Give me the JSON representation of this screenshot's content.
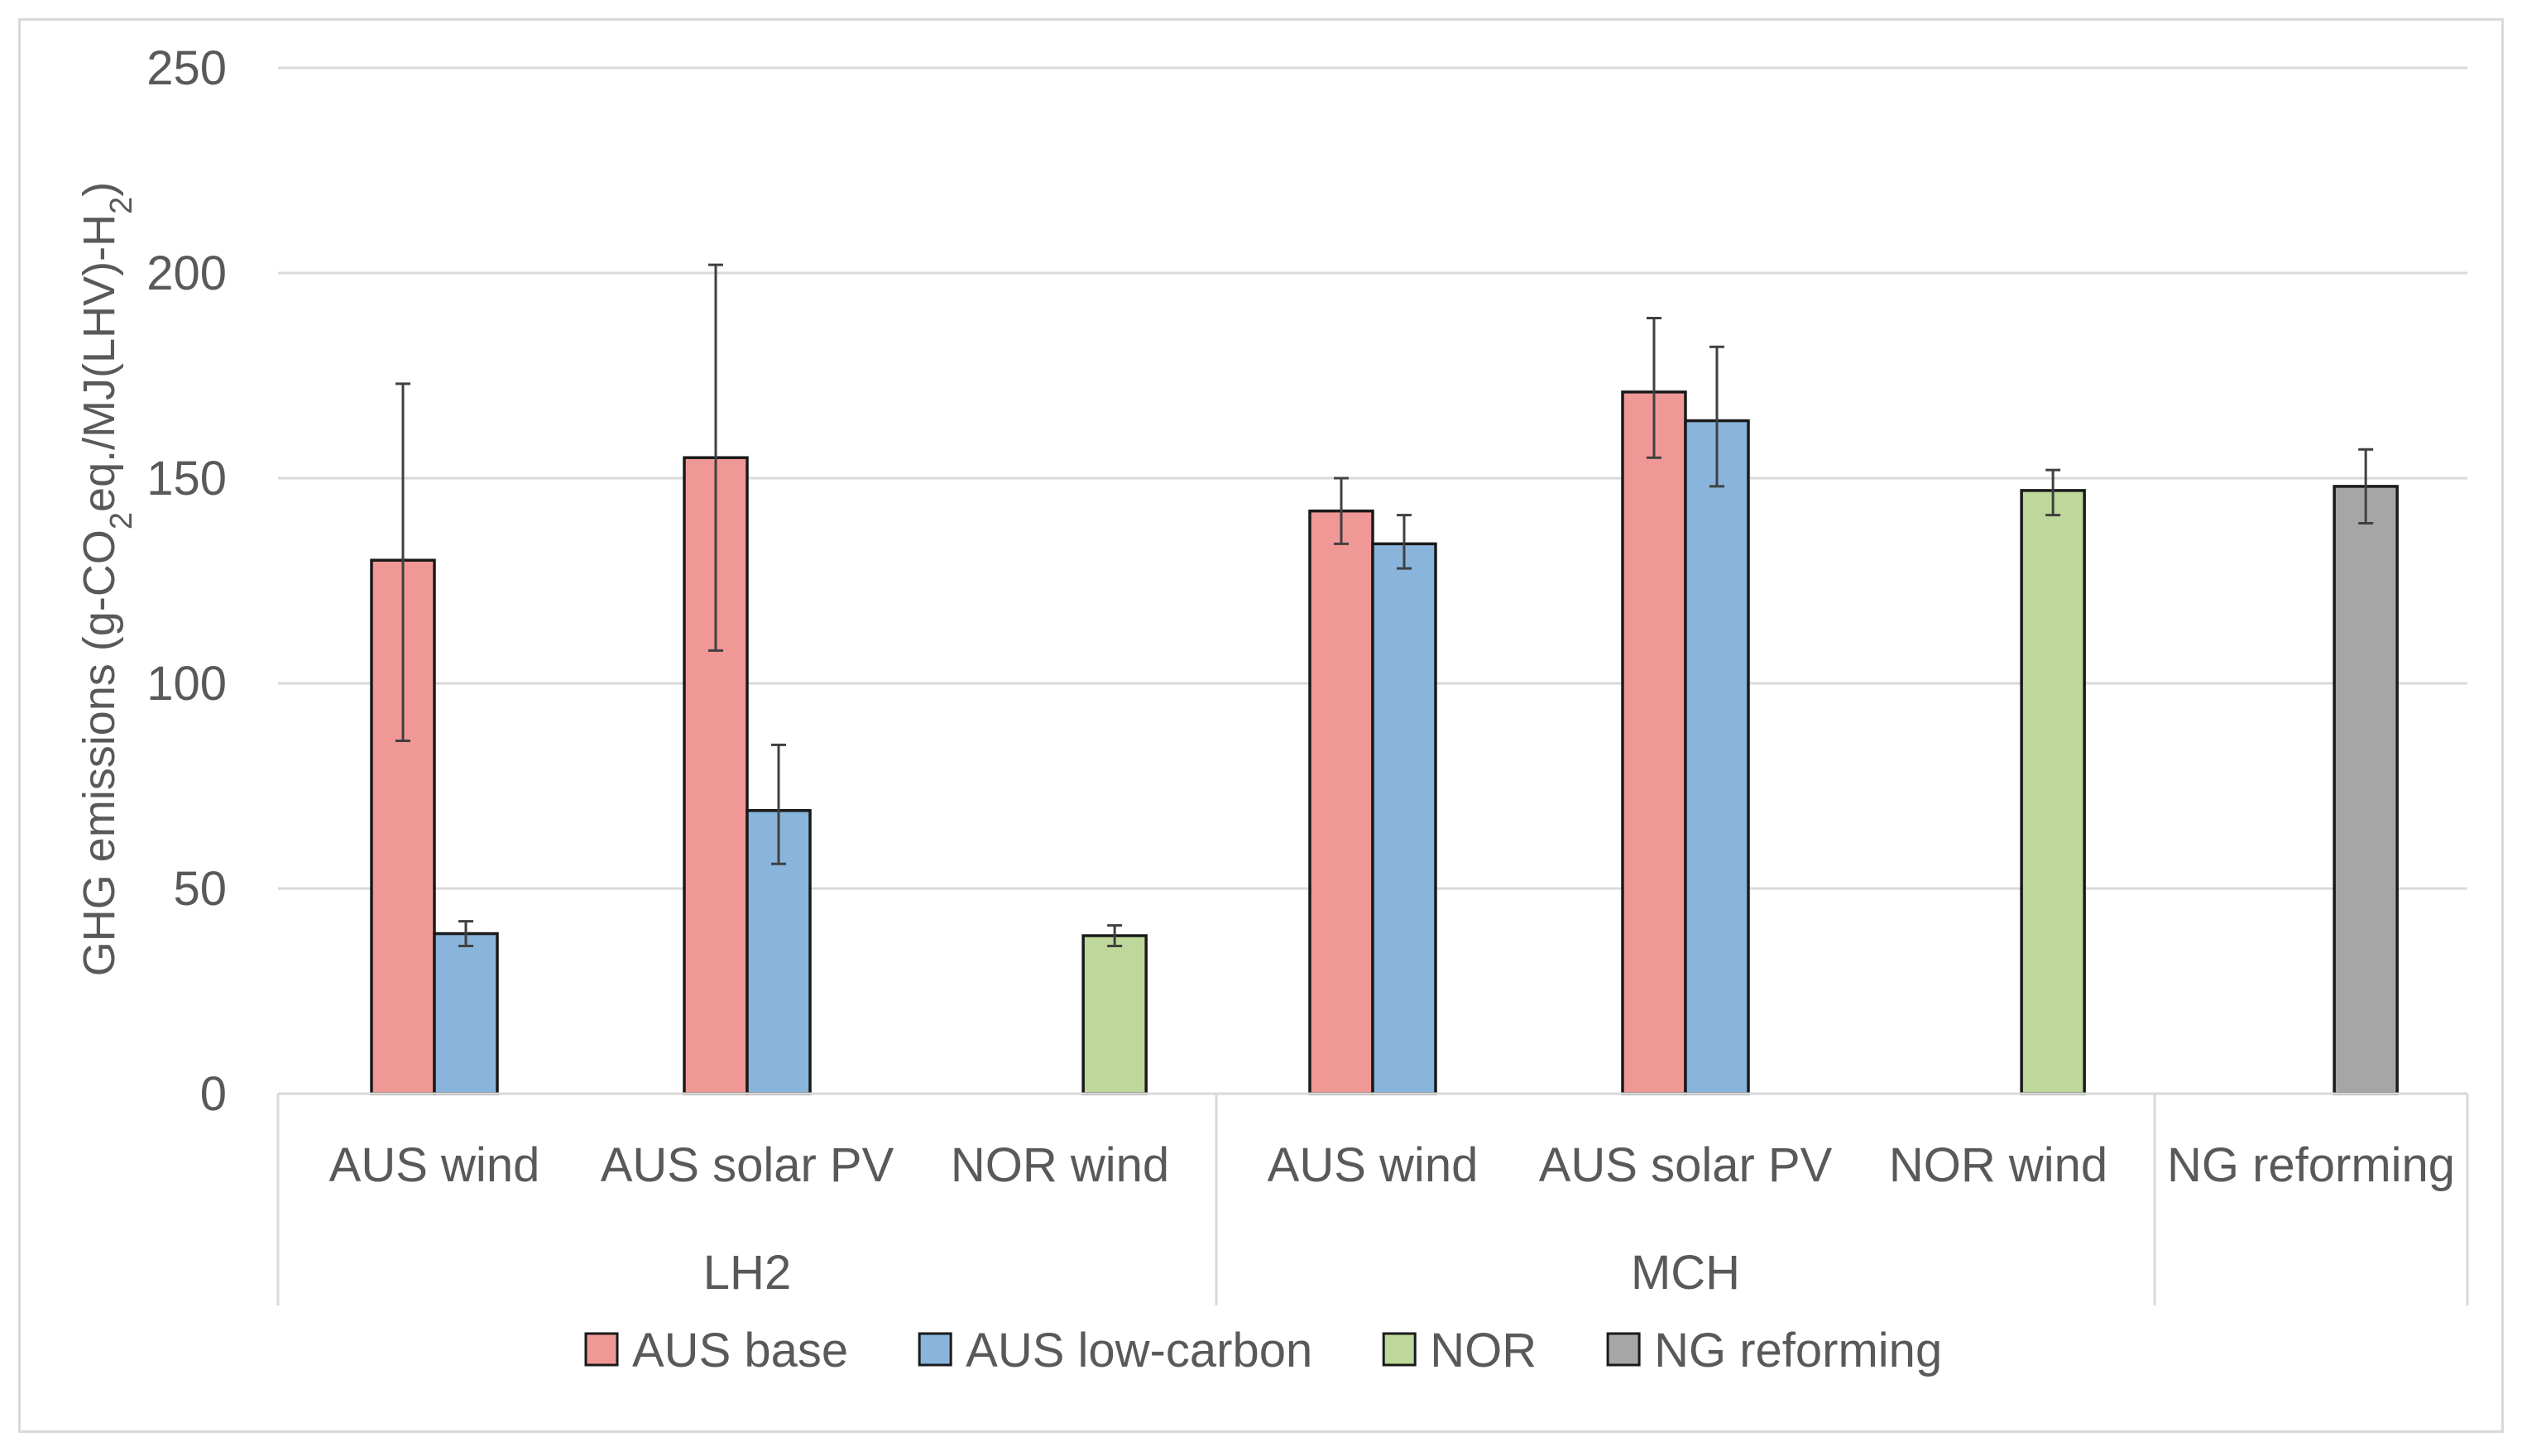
{
  "chart_data": {
    "type": "bar",
    "title": "",
    "ylabel_parts": [
      "GHG emissions (g-CO",
      "2",
      "eq./MJ(LHV)-H",
      "2",
      ")"
    ],
    "ylabel": "GHG emissions (g-CO2eq./MJ(LHV)-H2)",
    "ylim": [
      0,
      250
    ],
    "yticks": [
      0,
      50,
      100,
      150,
      200,
      250
    ],
    "grid": true,
    "groups": [
      {
        "label": "LH2",
        "categories": [
          "AUS wind",
          "AUS solar PV",
          "NOR wind"
        ]
      },
      {
        "label": "MCH",
        "categories": [
          "AUS wind",
          "AUS solar PV",
          "NOR wind"
        ]
      },
      {
        "label": "",
        "categories": [
          "NG reforming"
        ]
      }
    ],
    "series": [
      {
        "name": "AUS base",
        "color": "#f09896",
        "values": [
          130,
          155,
          null,
          142,
          171,
          null,
          null
        ],
        "err_low": [
          86,
          108,
          null,
          134,
          155,
          null,
          null
        ],
        "err_high": [
          173,
          202,
          null,
          150,
          189,
          null,
          null
        ]
      },
      {
        "name": "AUS low-carbon",
        "color": "#89b4dc",
        "values": [
          39,
          69,
          null,
          134,
          164,
          null,
          null
        ],
        "err_low": [
          36,
          56,
          null,
          128,
          148,
          null,
          null
        ],
        "err_high": [
          42,
          85,
          null,
          141,
          182,
          null,
          null
        ]
      },
      {
        "name": "NOR",
        "color": "#bdd89a",
        "values": [
          null,
          null,
          38.5,
          null,
          null,
          147,
          null
        ],
        "err_low": [
          null,
          null,
          36,
          null,
          null,
          141,
          null
        ],
        "err_high": [
          null,
          null,
          41,
          null,
          null,
          152,
          null
        ]
      },
      {
        "name": "NG reforming",
        "color": "#a6a6a6",
        "values": [
          null,
          null,
          null,
          null,
          null,
          null,
          148
        ],
        "err_low": [
          null,
          null,
          null,
          null,
          null,
          null,
          139
        ],
        "err_high": [
          null,
          null,
          null,
          null,
          null,
          null,
          157
        ]
      }
    ]
  }
}
